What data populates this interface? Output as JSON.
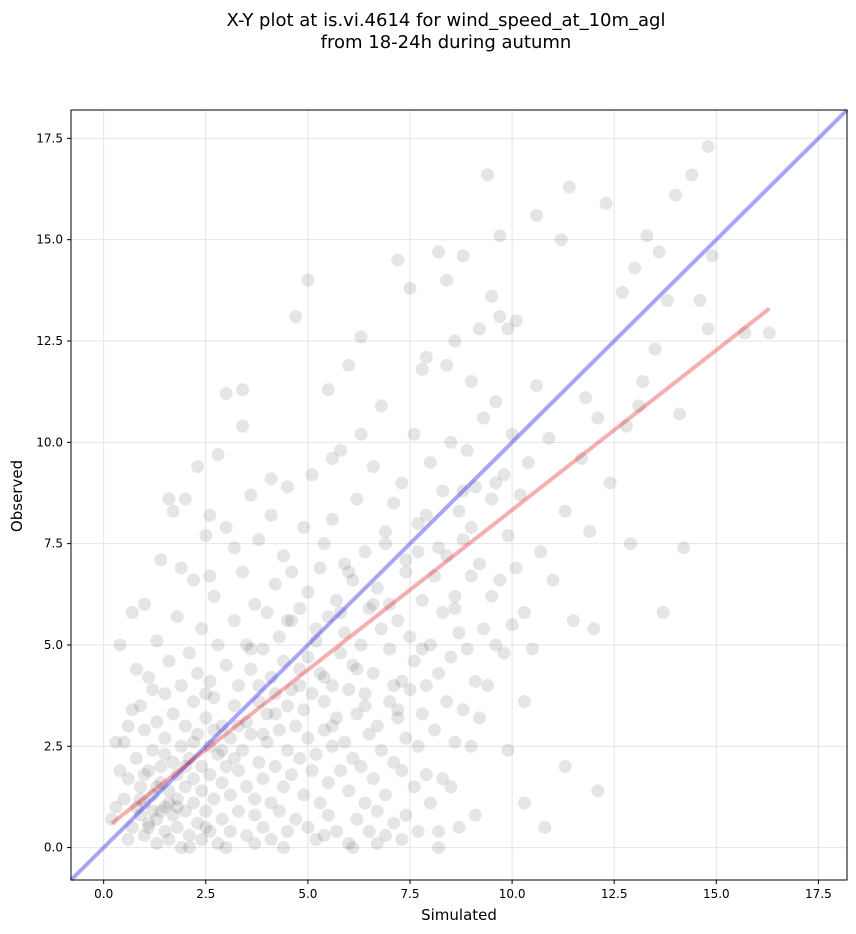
{
  "chart_data": {
    "type": "scatter",
    "title_line1": "X-Y plot at is.vi.4614 for wind_speed_at_10m_agl",
    "title_line2": "from 18-24h during autumn",
    "xlabel": "Simulated",
    "ylabel": "Observed",
    "xlim": [
      -0.8,
      18.2
    ],
    "ylim": [
      -0.8,
      18.2
    ],
    "xticks": [
      0.0,
      2.5,
      5.0,
      7.5,
      10.0,
      12.5,
      15.0,
      17.5
    ],
    "yticks": [
      0.0,
      2.5,
      5.0,
      7.5,
      10.0,
      12.5,
      15.0,
      17.5
    ],
    "xtick_labels": [
      "0.0",
      "2.5",
      "5.0",
      "7.5",
      "10.0",
      "12.5",
      "15.0",
      "17.5"
    ],
    "ytick_labels": [
      "0.0",
      "2.5",
      "5.0",
      "7.5",
      "10.0",
      "12.5",
      "15.0",
      "17.5"
    ],
    "grid": true,
    "point_color": "#000000",
    "point_alpha": 0.1,
    "points": [
      [
        0.2,
        0.7
      ],
      [
        0.3,
        2.6
      ],
      [
        0.4,
        5.0
      ],
      [
        0.5,
        1.2
      ],
      [
        0.5,
        2.6
      ],
      [
        0.6,
        0.2
      ],
      [
        0.6,
        1.7
      ],
      [
        0.7,
        0.5
      ],
      [
        0.7,
        3.4
      ],
      [
        0.7,
        5.8
      ],
      [
        0.8,
        1.0
      ],
      [
        0.8,
        2.2
      ],
      [
        0.9,
        0.8
      ],
      [
        0.9,
        1.5
      ],
      [
        0.9,
        3.5
      ],
      [
        1.0,
        0.3
      ],
      [
        1.0,
        1.1
      ],
      [
        1.0,
        2.9
      ],
      [
        1.0,
        6.0
      ],
      [
        1.1,
        0.6
      ],
      [
        1.1,
        1.9
      ],
      [
        1.1,
        4.2
      ],
      [
        1.2,
        0.9
      ],
      [
        1.2,
        1.3
      ],
      [
        1.2,
        2.4
      ],
      [
        1.3,
        0.1
      ],
      [
        1.3,
        0.7
      ],
      [
        1.3,
        3.1
      ],
      [
        1.3,
        5.1
      ],
      [
        1.4,
        1.6
      ],
      [
        1.4,
        2.0
      ],
      [
        1.4,
        7.1
      ],
      [
        1.5,
        0.4
      ],
      [
        1.5,
        1.0
      ],
      [
        1.5,
        2.7
      ],
      [
        1.5,
        3.8
      ],
      [
        1.6,
        0.2
      ],
      [
        1.6,
        1.4
      ],
      [
        1.6,
        4.6
      ],
      [
        1.6,
        8.6
      ],
      [
        1.7,
        0.8
      ],
      [
        1.7,
        2.1
      ],
      [
        1.7,
        3.3
      ],
      [
        1.8,
        0.5
      ],
      [
        1.8,
        1.2
      ],
      [
        1.8,
        1.8
      ],
      [
        1.8,
        5.7
      ],
      [
        1.9,
        0.0
      ],
      [
        1.9,
        2.5
      ],
      [
        1.9,
        4.0
      ],
      [
        2.0,
        0.9
      ],
      [
        2.0,
        1.5
      ],
      [
        2.0,
        3.0
      ],
      [
        2.0,
        8.6
      ],
      [
        2.1,
        0.3
      ],
      [
        2.1,
        2.2
      ],
      [
        2.1,
        4.8
      ],
      [
        2.2,
        1.1
      ],
      [
        2.2,
        1.7
      ],
      [
        2.2,
        3.6
      ],
      [
        2.2,
        6.6
      ],
      [
        2.3,
        0.6
      ],
      [
        2.3,
        2.8
      ],
      [
        2.3,
        4.3
      ],
      [
        2.4,
        0.2
      ],
      [
        2.4,
        1.4
      ],
      [
        2.4,
        2.0
      ],
      [
        2.4,
        5.4
      ],
      [
        2.5,
        0.9
      ],
      [
        2.5,
        3.2
      ],
      [
        2.5,
        7.7
      ],
      [
        2.6,
        0.4
      ],
      [
        2.6,
        1.8
      ],
      [
        2.6,
        2.5
      ],
      [
        2.6,
        4.1
      ],
      [
        2.7,
        1.2
      ],
      [
        2.7,
        3.7
      ],
      [
        2.7,
        6.2
      ],
      [
        2.8,
        0.1
      ],
      [
        2.8,
        2.3
      ],
      [
        2.8,
        5.0
      ],
      [
        2.8,
        9.7
      ],
      [
        2.9,
        0.7
      ],
      [
        2.9,
        1.6
      ],
      [
        2.9,
        3.0
      ],
      [
        3.0,
        2.0
      ],
      [
        3.0,
        4.5
      ],
      [
        3.0,
        7.9
      ],
      [
        3.0,
        11.2
      ],
      [
        3.1,
        0.4
      ],
      [
        3.1,
        1.3
      ],
      [
        3.1,
        2.7
      ],
      [
        3.2,
        3.5
      ],
      [
        3.2,
        5.6
      ],
      [
        3.2,
        7.4
      ],
      [
        3.3,
        0.9
      ],
      [
        3.3,
        1.9
      ],
      [
        3.3,
        4.0
      ],
      [
        3.4,
        2.4
      ],
      [
        3.4,
        6.8
      ],
      [
        3.4,
        11.3
      ],
      [
        3.5,
        0.3
      ],
      [
        3.5,
        1.5
      ],
      [
        3.5,
        3.1
      ],
      [
        3.5,
        5.0
      ],
      [
        3.6,
        2.8
      ],
      [
        3.6,
        4.4
      ],
      [
        3.7,
        0.8
      ],
      [
        3.7,
        1.2
      ],
      [
        3.7,
        6.0
      ],
      [
        3.8,
        2.1
      ],
      [
        3.8,
        3.6
      ],
      [
        3.8,
        7.6
      ],
      [
        3.9,
        0.5
      ],
      [
        3.9,
        1.7
      ],
      [
        3.9,
        4.9
      ],
      [
        4.0,
        2.6
      ],
      [
        4.0,
        3.3
      ],
      [
        4.0,
        5.8
      ],
      [
        4.1,
        0.2
      ],
      [
        4.1,
        1.1
      ],
      [
        4.1,
        4.2
      ],
      [
        4.1,
        8.2
      ],
      [
        4.2,
        2.0
      ],
      [
        4.2,
        3.8
      ],
      [
        4.2,
        6.5
      ],
      [
        4.3,
        0.9
      ],
      [
        4.3,
        2.9
      ],
      [
        4.3,
        5.2
      ],
      [
        4.4,
        1.5
      ],
      [
        4.4,
        4.6
      ],
      [
        4.4,
        7.2
      ],
      [
        4.5,
        0.4
      ],
      [
        4.5,
        2.4
      ],
      [
        4.5,
        3.5
      ],
      [
        4.5,
        8.9
      ],
      [
        4.6,
        1.8
      ],
      [
        4.6,
        5.6
      ],
      [
        4.6,
        6.8
      ],
      [
        4.7,
        0.7
      ],
      [
        4.7,
        3.0
      ],
      [
        4.7,
        13.1
      ],
      [
        4.8,
        2.2
      ],
      [
        4.8,
        4.0
      ],
      [
        4.8,
        5.9
      ],
      [
        4.9,
        1.3
      ],
      [
        4.9,
        3.4
      ],
      [
        4.9,
        7.9
      ],
      [
        5.0,
        0.5
      ],
      [
        5.0,
        2.7
      ],
      [
        5.0,
        4.7
      ],
      [
        5.0,
        6.3
      ],
      [
        5.0,
        14.0
      ],
      [
        5.1,
        1.9
      ],
      [
        5.1,
        3.8
      ],
      [
        5.1,
        9.2
      ],
      [
        5.2,
        0.2
      ],
      [
        5.2,
        2.3
      ],
      [
        5.2,
        5.1
      ],
      [
        5.3,
        1.1
      ],
      [
        5.3,
        4.3
      ],
      [
        5.3,
        6.9
      ],
      [
        5.4,
        2.9
      ],
      [
        5.4,
        3.6
      ],
      [
        5.4,
        7.5
      ],
      [
        5.5,
        0.8
      ],
      [
        5.5,
        1.6
      ],
      [
        5.5,
        5.7
      ],
      [
        5.5,
        11.3
      ],
      [
        5.6,
        2.5
      ],
      [
        5.6,
        4.0
      ],
      [
        5.6,
        8.1
      ],
      [
        5.7,
        0.4
      ],
      [
        5.7,
        3.2
      ],
      [
        5.7,
        6.1
      ],
      [
        5.8,
        1.9
      ],
      [
        5.8,
        4.8
      ],
      [
        5.8,
        9.8
      ],
      [
        5.9,
        2.6
      ],
      [
        5.9,
        5.3
      ],
      [
        5.9,
        7.0
      ],
      [
        6.0,
        0.1
      ],
      [
        6.0,
        1.4
      ],
      [
        6.0,
        3.9
      ],
      [
        6.0,
        11.9
      ],
      [
        6.1,
        2.2
      ],
      [
        6.1,
        4.5
      ],
      [
        6.1,
        6.6
      ],
      [
        6.2,
        0.7
      ],
      [
        6.2,
        3.3
      ],
      [
        6.2,
        8.6
      ],
      [
        6.3,
        2.0
      ],
      [
        6.3,
        5.0
      ],
      [
        6.3,
        12.6
      ],
      [
        6.4,
        1.1
      ],
      [
        6.4,
        3.8
      ],
      [
        6.4,
        7.3
      ],
      [
        6.5,
        0.4
      ],
      [
        6.5,
        2.8
      ],
      [
        6.5,
        5.9
      ],
      [
        6.6,
        1.7
      ],
      [
        6.6,
        4.3
      ],
      [
        6.6,
        9.4
      ],
      [
        6.7,
        0.9
      ],
      [
        6.7,
        3.0
      ],
      [
        6.7,
        6.4
      ],
      [
        6.8,
        2.4
      ],
      [
        6.8,
        5.4
      ],
      [
        6.8,
        10.9
      ],
      [
        6.9,
        0.3
      ],
      [
        6.9,
        1.3
      ],
      [
        6.9,
        7.8
      ],
      [
        7.0,
        3.6
      ],
      [
        7.0,
        4.9
      ],
      [
        7.0,
        6.0
      ],
      [
        7.1,
        0.6
      ],
      [
        7.1,
        2.1
      ],
      [
        7.1,
        8.5
      ],
      [
        7.2,
        3.2
      ],
      [
        7.2,
        5.6
      ],
      [
        7.2,
        14.5
      ],
      [
        7.3,
        1.9
      ],
      [
        7.3,
        4.1
      ],
      [
        7.3,
        9.0
      ],
      [
        7.4,
        0.8
      ],
      [
        7.4,
        2.7
      ],
      [
        7.4,
        6.8
      ],
      [
        7.5,
        3.9
      ],
      [
        7.5,
        5.2
      ],
      [
        7.5,
        13.8
      ],
      [
        7.6,
        1.5
      ],
      [
        7.6,
        4.6
      ],
      [
        7.6,
        10.2
      ],
      [
        7.7,
        0.4
      ],
      [
        7.7,
        2.5
      ],
      [
        7.7,
        7.3
      ],
      [
        7.8,
        3.3
      ],
      [
        7.8,
        6.1
      ],
      [
        7.8,
        11.8
      ],
      [
        7.9,
        1.8
      ],
      [
        7.9,
        4.0
      ],
      [
        7.9,
        8.2
      ],
      [
        8.0,
        1.1
      ],
      [
        8.0,
        5.0
      ],
      [
        8.0,
        9.5
      ],
      [
        8.1,
        2.9
      ],
      [
        8.1,
        6.7
      ],
      [
        8.2,
        0.4
      ],
      [
        8.2,
        4.3
      ],
      [
        8.2,
        14.7
      ],
      [
        8.3,
        1.7
      ],
      [
        8.3,
        5.8
      ],
      [
        8.3,
        8.8
      ],
      [
        8.4,
        3.6
      ],
      [
        8.4,
        7.2
      ],
      [
        8.4,
        14.0
      ],
      [
        8.5,
        1.5
      ],
      [
        8.5,
        4.7
      ],
      [
        8.5,
        10.0
      ],
      [
        8.6,
        2.6
      ],
      [
        8.6,
        6.2
      ],
      [
        8.6,
        12.5
      ],
      [
        8.7,
        0.5
      ],
      [
        8.7,
        5.3
      ],
      [
        8.7,
        8.3
      ],
      [
        8.8,
        3.4
      ],
      [
        8.8,
        7.6
      ],
      [
        8.8,
        14.6
      ],
      [
        8.9,
        4.9
      ],
      [
        8.9,
        9.8
      ],
      [
        9.0,
        2.5
      ],
      [
        9.0,
        6.7
      ],
      [
        9.0,
        11.5
      ],
      [
        9.1,
        4.1
      ],
      [
        9.1,
        8.9
      ],
      [
        9.2,
        3.2
      ],
      [
        9.2,
        7.0
      ],
      [
        9.2,
        12.8
      ],
      [
        9.3,
        5.4
      ],
      [
        9.3,
        10.6
      ],
      [
        9.4,
        4.0
      ],
      [
        9.4,
        16.6
      ],
      [
        9.5,
        6.2
      ],
      [
        9.5,
        8.6
      ],
      [
        9.5,
        13.6
      ],
      [
        9.6,
        5.0
      ],
      [
        9.6,
        11.0
      ],
      [
        9.7,
        6.6
      ],
      [
        9.7,
        15.1
      ],
      [
        9.8,
        4.8
      ],
      [
        9.8,
        9.2
      ],
      [
        9.9,
        2.4
      ],
      [
        9.9,
        7.7
      ],
      [
        9.9,
        12.8
      ],
      [
        10.0,
        5.5
      ],
      [
        10.0,
        10.2
      ],
      [
        10.1,
        6.9
      ],
      [
        10.1,
        13.0
      ],
      [
        10.2,
        8.7
      ],
      [
        10.3,
        3.6
      ],
      [
        10.3,
        5.8
      ],
      [
        10.4,
        9.5
      ],
      [
        10.5,
        4.9
      ],
      [
        10.6,
        15.6
      ],
      [
        10.7,
        7.3
      ],
      [
        10.8,
        0.5
      ],
      [
        10.9,
        10.1
      ],
      [
        11.0,
        6.6
      ],
      [
        11.2,
        15.0
      ],
      [
        11.3,
        8.3
      ],
      [
        11.4,
        16.3
      ],
      [
        11.5,
        5.6
      ],
      [
        11.7,
        9.6
      ],
      [
        11.9,
        7.8
      ],
      [
        12.0,
        5.4
      ],
      [
        12.1,
        10.6
      ],
      [
        12.3,
        15.9
      ],
      [
        12.4,
        9.0
      ],
      [
        12.7,
        13.7
      ],
      [
        12.9,
        7.5
      ],
      [
        13.0,
        14.3
      ],
      [
        13.2,
        11.5
      ],
      [
        13.3,
        15.1
      ],
      [
        13.5,
        12.3
      ],
      [
        13.6,
        14.7
      ],
      [
        13.7,
        5.8
      ],
      [
        13.8,
        13.5
      ],
      [
        14.0,
        16.1
      ],
      [
        14.1,
        10.7
      ],
      [
        14.2,
        7.4
      ],
      [
        14.4,
        16.6
      ],
      [
        14.6,
        13.5
      ],
      [
        14.8,
        17.3
      ],
      [
        14.8,
        12.8
      ],
      [
        14.9,
        14.6
      ],
      [
        15.7,
        12.7
      ],
      [
        16.3,
        12.7
      ],
      [
        12.8,
        10.4
      ],
      [
        13.1,
        10.9
      ],
      [
        11.8,
        11.1
      ],
      [
        10.6,
        11.4
      ],
      [
        9.7,
        13.1
      ],
      [
        8.4,
        11.9
      ],
      [
        7.9,
        12.1
      ],
      [
        6.3,
        10.2
      ],
      [
        5.6,
        9.6
      ],
      [
        4.1,
        9.1
      ],
      [
        3.6,
        8.7
      ],
      [
        2.6,
        8.2
      ],
      [
        2.3,
        9.4
      ],
      [
        1.7,
        8.3
      ],
      [
        3.4,
        10.4
      ],
      [
        1.9,
        6.9
      ],
      [
        2.6,
        6.7
      ],
      [
        1.2,
        3.9
      ],
      [
        0.8,
        4.4
      ],
      [
        0.6,
        3.0
      ],
      [
        0.4,
        1.9
      ],
      [
        0.3,
        1.0
      ],
      [
        1.8,
        1.0
      ],
      [
        2.1,
        0.0
      ],
      [
        2.5,
        0.5
      ],
      [
        3.0,
        0.0
      ],
      [
        3.7,
        0.1
      ],
      [
        4.4,
        0.0
      ],
      [
        5.4,
        0.3
      ],
      [
        6.1,
        0.0
      ],
      [
        6.7,
        0.1
      ],
      [
        7.3,
        0.2
      ],
      [
        8.2,
        0.0
      ],
      [
        9.1,
        0.8
      ],
      [
        10.3,
        1.1
      ],
      [
        11.3,
        2.0
      ],
      [
        12.1,
        1.4
      ],
      [
        1.4,
        0.9
      ],
      [
        1.1,
        0.5
      ],
      [
        0.9,
        1.2
      ],
      [
        1.6,
        1.1
      ],
      [
        1.3,
        1.5
      ],
      [
        2.2,
        2.6
      ],
      [
        2.9,
        2.4
      ],
      [
        3.3,
        3.0
      ],
      [
        4.2,
        3.3
      ],
      [
        5.4,
        4.2
      ],
      [
        6.2,
        4.4
      ],
      [
        7.1,
        4.0
      ],
      [
        7.8,
        4.9
      ],
      [
        8.6,
        5.9
      ],
      [
        3.6,
        4.9
      ],
      [
        4.5,
        5.6
      ],
      [
        5.8,
        5.8
      ],
      [
        6.6,
        6.0
      ],
      [
        7.4,
        7.1
      ],
      [
        8.2,
        7.4
      ],
      [
        9.0,
        7.9
      ],
      [
        2.5,
        3.8
      ],
      [
        3.8,
        4.0
      ],
      [
        4.8,
        4.4
      ],
      [
        5.2,
        5.4
      ],
      [
        6.0,
        6.8
      ],
      [
        6.9,
        7.5
      ],
      [
        7.7,
        8.0
      ],
      [
        8.8,
        8.8
      ],
      [
        9.6,
        9.0
      ],
      [
        1.0,
        1.8
      ],
      [
        1.5,
        2.3
      ],
      [
        2.0,
        2.0
      ],
      [
        2.7,
        2.9
      ],
      [
        3.2,
        2.2
      ],
      [
        3.9,
        2.8
      ],
      [
        4.6,
        3.9
      ],
      [
        5.6,
        3.0
      ],
      [
        6.4,
        3.5
      ],
      [
        7.2,
        3.4
      ]
    ],
    "lines": [
      {
        "name": "1:1",
        "color": "#0000ee",
        "alpha": 0.35,
        "x": [
          -0.8,
          18.2
        ],
        "y": [
          -0.8,
          18.2
        ]
      },
      {
        "name": "fit",
        "color": "#e31a1c",
        "alpha": 0.35,
        "x": [
          0.2,
          16.3
        ],
        "y": [
          0.6,
          13.3
        ]
      }
    ]
  }
}
